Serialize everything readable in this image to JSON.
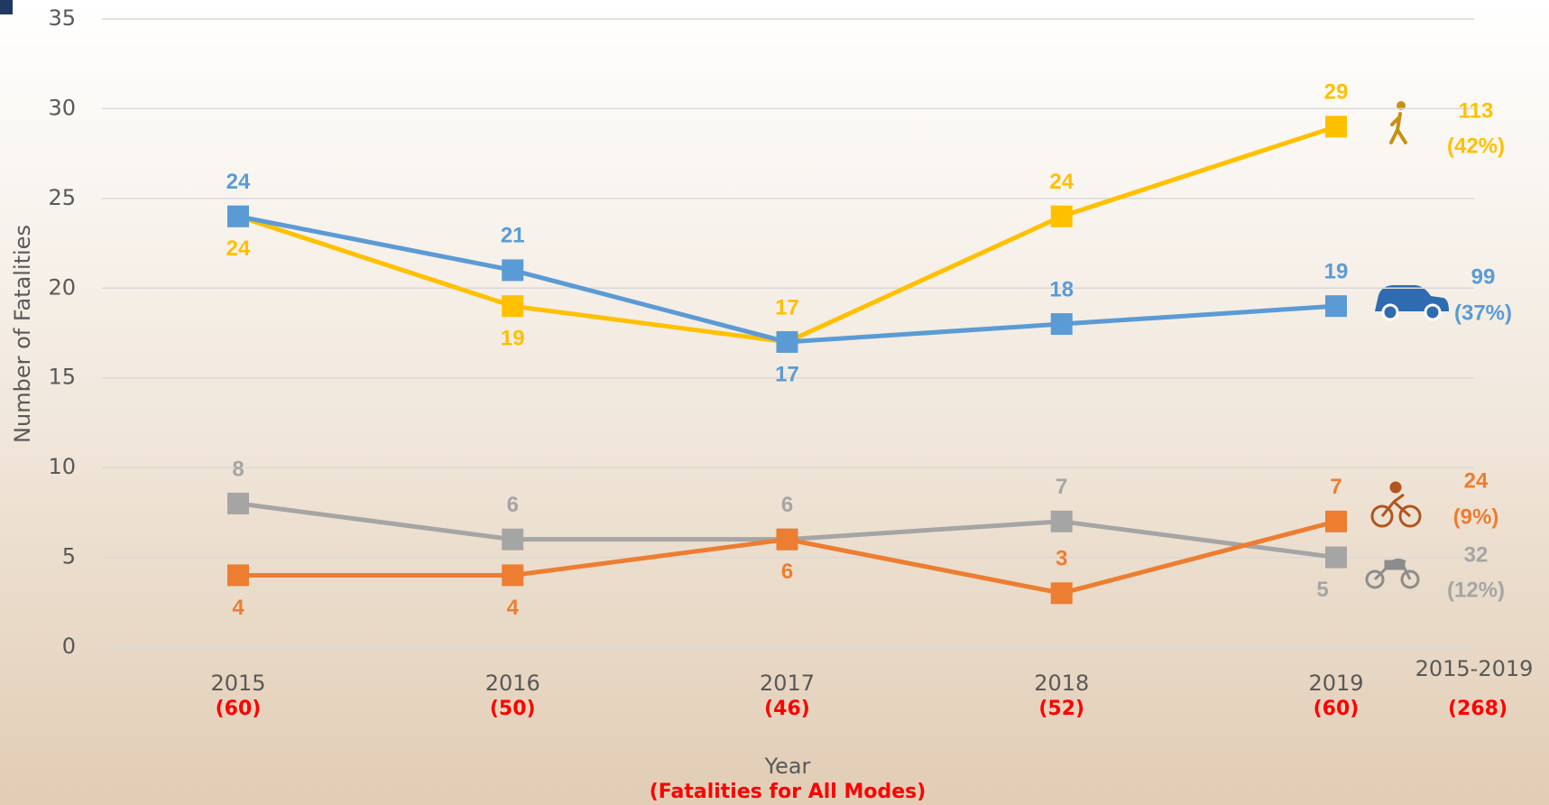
{
  "chart_data": {
    "type": "line",
    "y_label": "Number of Fatalities",
    "x_label": "Year",
    "x_sublabel": "(Fatalities for All Modes)",
    "categories": [
      "2015",
      "2016",
      "2017",
      "2018",
      "2019"
    ],
    "all_modes": {
      "values": [
        60,
        50,
        46,
        52,
        60
      ],
      "value_labels": [
        "(60)",
        "(50)",
        "(46)",
        "(52)",
        "(60)"
      ]
    },
    "total_period": "2015-2019",
    "grand_total": {
      "value": 268,
      "label": "(268)"
    },
    "series": [
      {
        "color": "#FFC000",
        "values": [
          24,
          19,
          17,
          24,
          29
        ],
        "total": 113,
        "share": {
          "value": 42,
          "label": "(42%)"
        }
      },
      {
        "color": "#5B9BD5",
        "values": [
          24,
          21,
          17,
          18,
          19
        ],
        "total": 99,
        "share": {
          "value": 37,
          "label": "(37%)"
        }
      },
      {
        "color": "#A5A5A5",
        "values": [
          8,
          6,
          6,
          7,
          5
        ],
        "total": 32,
        "share": {
          "value": 12,
          "label": "(12%)"
        }
      },
      {
        "color": "#ED7D31",
        "values": [
          4,
          4,
          6,
          3,
          7
        ],
        "total": 24,
        "share": {
          "value": 9,
          "label": "(9%)"
        }
      }
    ],
    "ylim": [
      0,
      35
    ],
    "yticks": [
      0,
      5,
      10,
      15,
      20,
      25,
      30,
      35
    ],
    "grid": true
  }
}
